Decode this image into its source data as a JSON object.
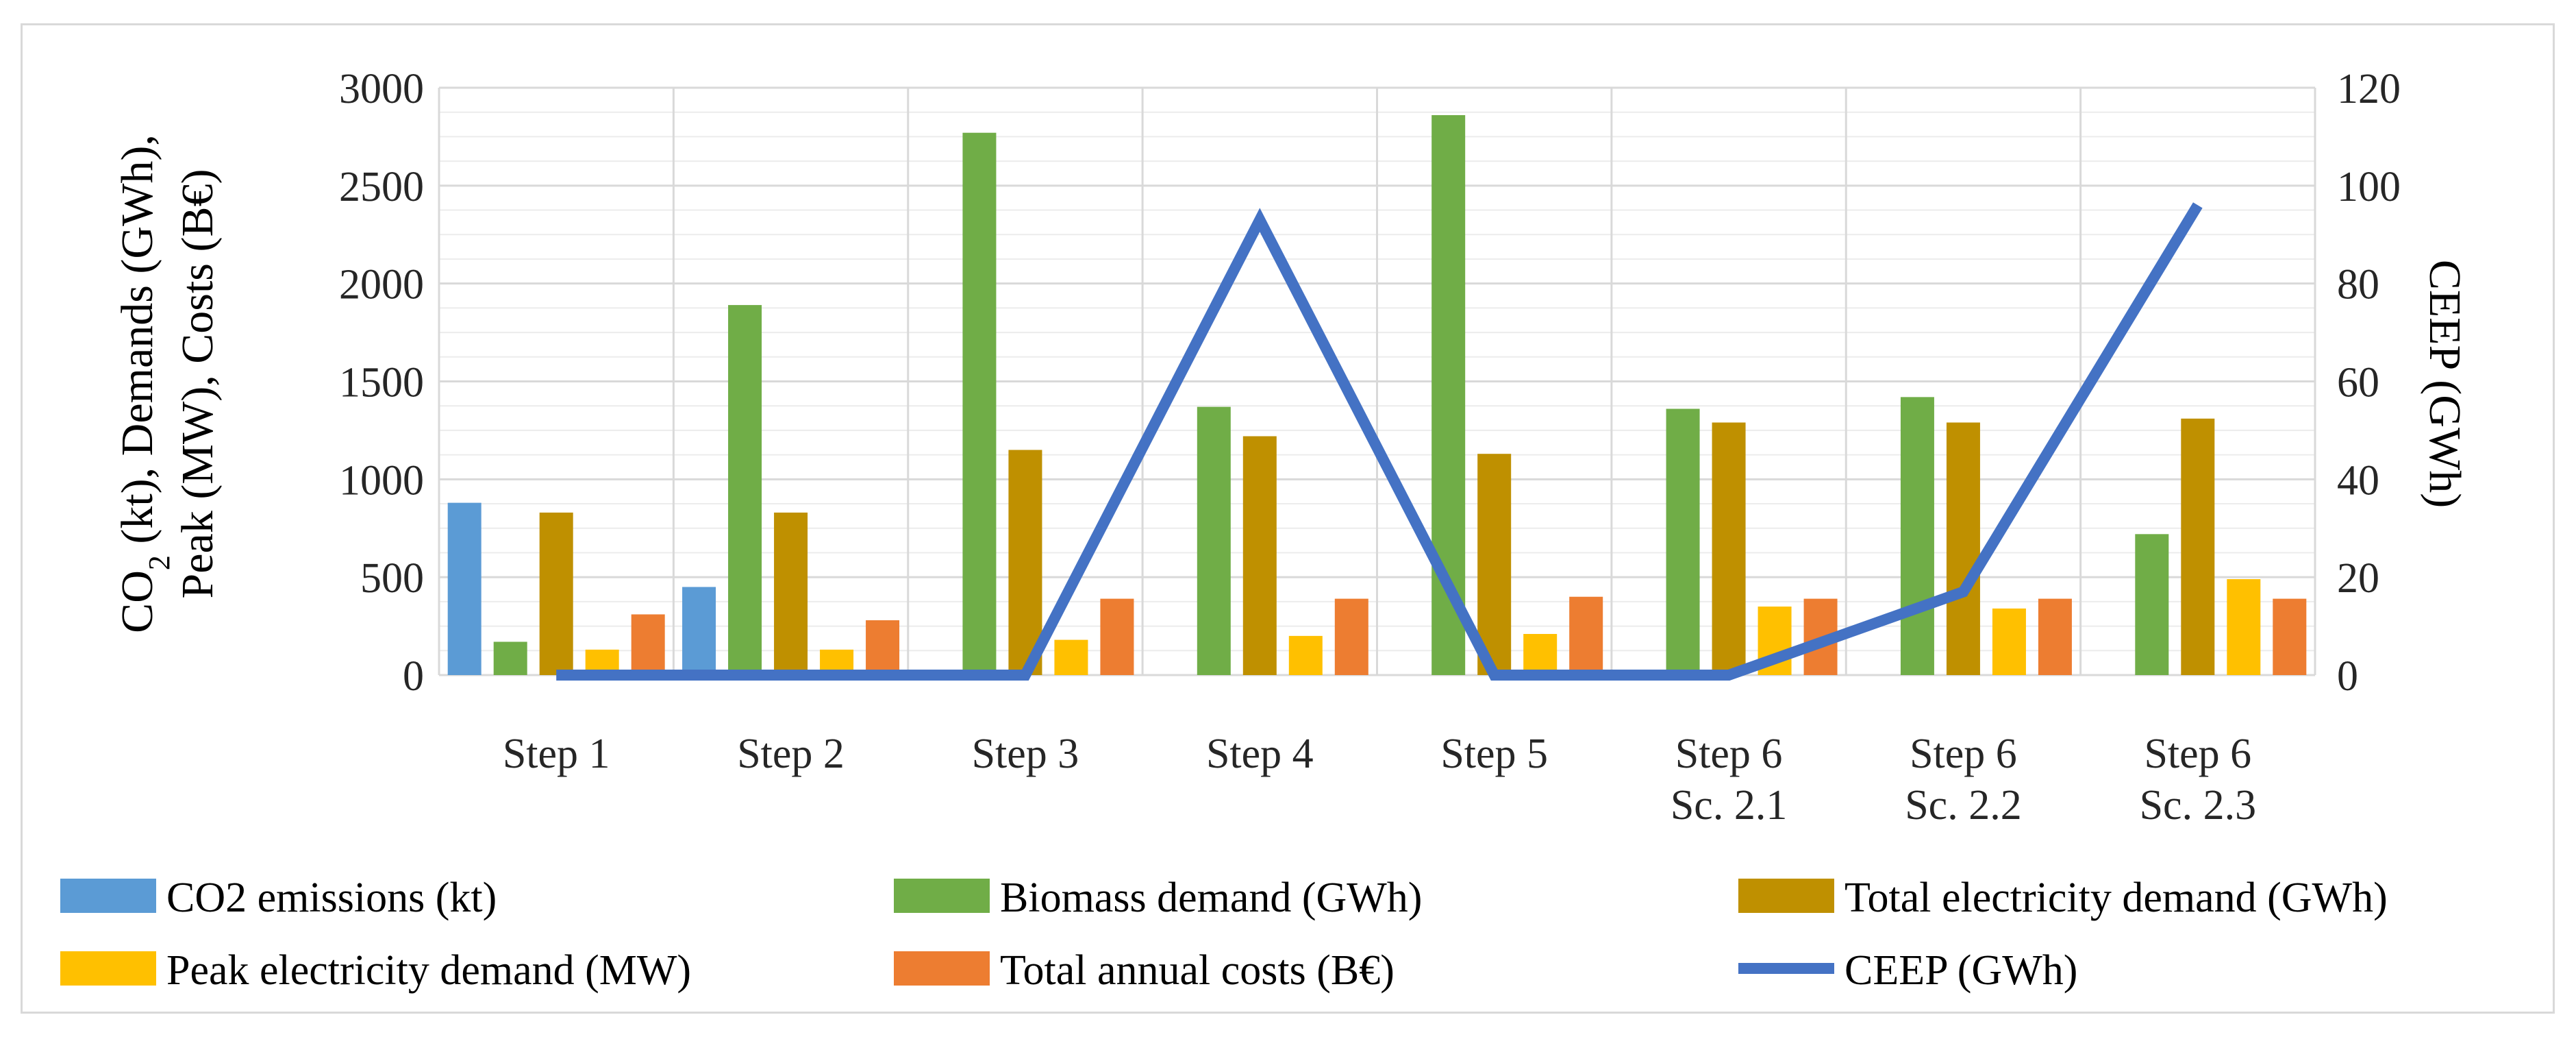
{
  "chart_data": {
    "type": "bar",
    "title": "",
    "categories": [
      [
        "Step 1"
      ],
      [
        "Step 2"
      ],
      [
        "Step 3"
      ],
      [
        "Step 4"
      ],
      [
        "Step 5"
      ],
      [
        "Step 6",
        "Sc. 2.1"
      ],
      [
        "Step 6",
        "Sc. 2.2"
      ],
      [
        "Step 6",
        "Sc. 2.3"
      ]
    ],
    "ylabel_left": {
      "line1": [
        "CO",
        "2",
        " (kt), Demands (GWh),"
      ],
      "line2": "Peak (MW), Costs (B€)"
    },
    "ylabel_right": "CEEP (GWh)",
    "ylim_left": [
      0,
      3000
    ],
    "yticks_left": [
      "0",
      "500",
      "1000",
      "1500",
      "2000",
      "2500",
      "3000"
    ],
    "ylim_right": [
      0,
      120
    ],
    "yticks_right": [
      "0",
      "20",
      "40",
      "60",
      "80",
      "100",
      "120"
    ],
    "grid": true,
    "series": [
      {
        "name": "CO2 emissions (kt)",
        "color": "#5b9bd5",
        "axis": "left",
        "kind": "bar",
        "values": [
          880,
          450,
          0,
          0,
          0,
          0,
          0,
          0
        ]
      },
      {
        "name": "Biomass demand (GWh)",
        "color": "#70ad47",
        "axis": "left",
        "kind": "bar",
        "values": [
          170,
          1890,
          2770,
          1370,
          2860,
          1360,
          1420,
          720
        ]
      },
      {
        "name": "Total electricity demand (GWh)",
        "color": "#bf9000",
        "axis": "left",
        "kind": "bar",
        "values": [
          830,
          830,
          1150,
          1220,
          1130,
          1290,
          1290,
          1310
        ]
      },
      {
        "name": "Peak electricity demand (MW)",
        "color": "#ffc000",
        "axis": "left",
        "kind": "bar",
        "values": [
          130,
          130,
          180,
          200,
          210,
          350,
          340,
          490
        ]
      },
      {
        "name": "Total annual costs (B€)",
        "color": "#ed7d31",
        "axis": "left",
        "kind": "bar",
        "values": [
          310,
          280,
          390,
          390,
          400,
          390,
          390,
          390
        ]
      },
      {
        "name": "CEEP (GWh)",
        "color": "#4472c4",
        "axis": "right",
        "kind": "line",
        "values": [
          0,
          0,
          0,
          93,
          0,
          0,
          17,
          96
        ]
      }
    ],
    "legend": {
      "position": "bottom",
      "order": [
        0,
        1,
        2,
        3,
        4,
        5
      ]
    }
  }
}
